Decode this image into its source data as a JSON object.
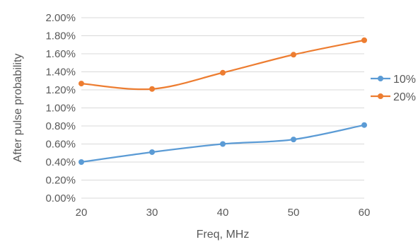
{
  "chart_data": {
    "type": "line",
    "title": "",
    "xlabel": "Freq, MHz",
    "ylabel": "After pulse probability",
    "x": [
      20,
      30,
      40,
      50,
      60
    ],
    "x_ticks": [
      "20",
      "30",
      "40",
      "50",
      "60"
    ],
    "xlim": [
      20,
      60
    ],
    "ylim": [
      0,
      2.0
    ],
    "y_ticks": [
      "0.00%",
      "0.20%",
      "0.40%",
      "0.60%",
      "0.80%",
      "1.00%",
      "1.20%",
      "1.40%",
      "1.60%",
      "1.80%",
      "2.00%"
    ],
    "y_unit": "%",
    "grid": "horizontal",
    "legend_position": "right",
    "smooth": true,
    "series": [
      {
        "name": "10%",
        "color": "#5B9BD5",
        "values": [
          0.4,
          0.51,
          0.6,
          0.65,
          0.81
        ]
      },
      {
        "name": "20%",
        "color": "#ED7D31",
        "values": [
          1.27,
          1.21,
          1.39,
          1.59,
          1.75
        ]
      }
    ]
  }
}
